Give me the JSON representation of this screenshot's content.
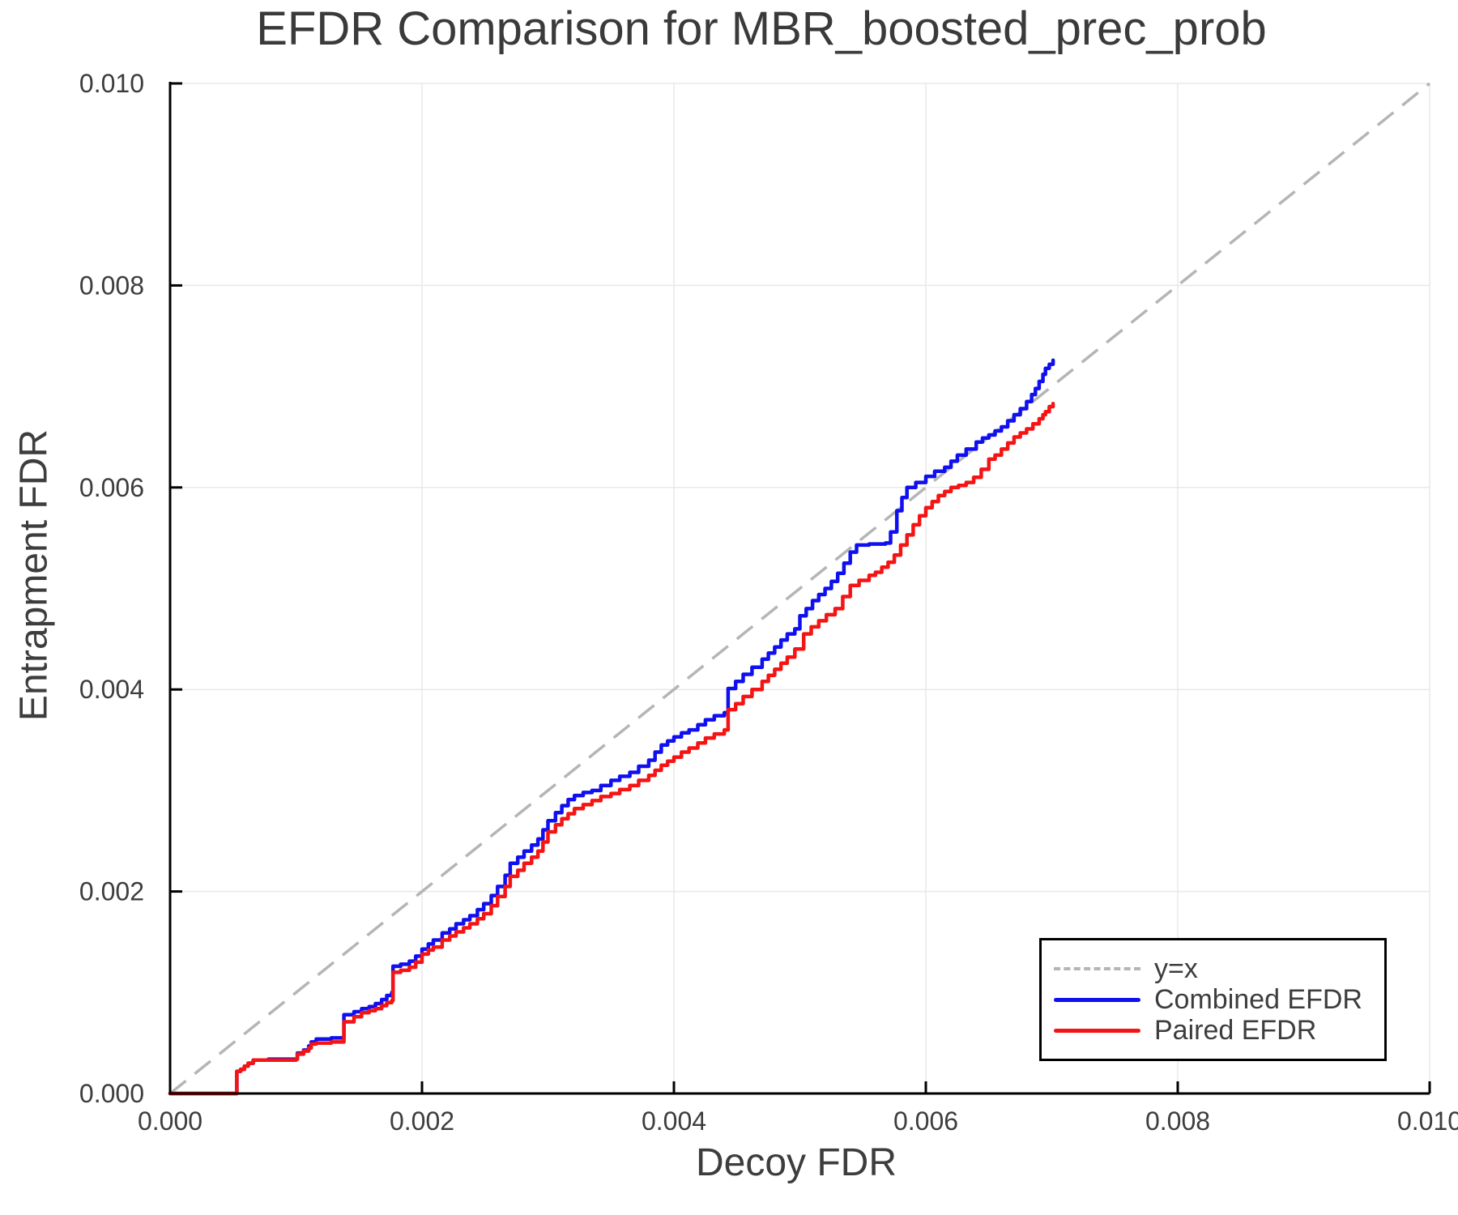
{
  "page": {
    "background": "#ffffff"
  },
  "chart_data": {
    "type": "line",
    "title": "EFDR Comparison for MBR_boosted_prec_prob",
    "xlabel": "Decoy FDR",
    "ylabel": "Entrapment FDR",
    "xlim": [
      0.0,
      0.01
    ],
    "ylim": [
      0.0,
      0.01
    ],
    "grid": true,
    "x_ticks": {
      "values": [
        0.0,
        0.002,
        0.004,
        0.006,
        0.008,
        0.01
      ],
      "labels": [
        "0.000",
        "0.002",
        "0.004",
        "0.006",
        "0.008",
        "0.010"
      ]
    },
    "y_ticks": {
      "values": [
        0.0,
        0.002,
        0.004,
        0.006,
        0.008,
        0.01
      ],
      "labels": [
        "0.000",
        "0.002",
        "0.004",
        "0.006",
        "0.008",
        "0.010"
      ]
    },
    "colors": {
      "grid": "#e8e8e8",
      "spine": "#000000",
      "tick_text": "#3d3d3d",
      "reference": "#b5b5b5",
      "combined": "#0f0ff0",
      "paired": "#f51414"
    },
    "reference_line": {
      "label": "y=x",
      "style": "dashed",
      "from": [
        0.0,
        0.0
      ],
      "to": [
        0.01,
        0.01
      ]
    },
    "legend": {
      "position": "lower-right",
      "items": [
        {
          "label": "y=x",
          "color": "#b5b5b5",
          "dash": true
        },
        {
          "label": "Combined EFDR",
          "color": "#0f0ff0",
          "dash": false
        },
        {
          "label": "Paired EFDR",
          "color": "#f51414",
          "dash": false
        }
      ]
    },
    "series": [
      {
        "name": "Combined EFDR",
        "color": "#0f0ff0",
        "step": true,
        "points": [
          [
            0.0,
            0.0
          ],
          [
            0.00053,
            0.0
          ],
          [
            0.00053,
            0.00022
          ],
          [
            0.00056,
            0.00024
          ],
          [
            0.00059,
            0.00027
          ],
          [
            0.00062,
            0.0003
          ],
          [
            0.00066,
            0.00033
          ],
          [
            0.00078,
            0.00034
          ],
          [
            0.001,
            0.00034
          ],
          [
            0.00101,
            0.0004
          ],
          [
            0.00106,
            0.00043
          ],
          [
            0.0011,
            0.00047
          ],
          [
            0.00112,
            0.00051
          ],
          [
            0.00116,
            0.00054
          ],
          [
            0.00128,
            0.00055
          ],
          [
            0.00137,
            0.00055
          ],
          [
            0.00138,
            0.00078
          ],
          [
            0.00146,
            0.00081
          ],
          [
            0.00152,
            0.00084
          ],
          [
            0.00158,
            0.00086
          ],
          [
            0.00163,
            0.00089
          ],
          [
            0.00168,
            0.00093
          ],
          [
            0.00172,
            0.00097
          ],
          [
            0.00176,
            0.001
          ],
          [
            0.00177,
            0.00126
          ],
          [
            0.00183,
            0.00128
          ],
          [
            0.0019,
            0.00131
          ],
          [
            0.00195,
            0.00136
          ],
          [
            0.002,
            0.00143
          ],
          [
            0.00205,
            0.00148
          ],
          [
            0.00209,
            0.00152
          ],
          [
            0.00216,
            0.00159
          ],
          [
            0.00222,
            0.00163
          ],
          [
            0.00227,
            0.00168
          ],
          [
            0.00233,
            0.00172
          ],
          [
            0.00238,
            0.00176
          ],
          [
            0.00244,
            0.00182
          ],
          [
            0.00249,
            0.00188
          ],
          [
            0.00255,
            0.00196
          ],
          [
            0.0026,
            0.00205
          ],
          [
            0.00266,
            0.00216
          ],
          [
            0.0027,
            0.00228
          ],
          [
            0.00276,
            0.00234
          ],
          [
            0.00281,
            0.0024
          ],
          [
            0.00287,
            0.00246
          ],
          [
            0.00292,
            0.00252
          ],
          [
            0.00296,
            0.00261
          ],
          [
            0.003,
            0.0027
          ],
          [
            0.00306,
            0.00278
          ],
          [
            0.00311,
            0.00285
          ],
          [
            0.00316,
            0.00291
          ],
          [
            0.00321,
            0.00295
          ],
          [
            0.00328,
            0.00298
          ],
          [
            0.00335,
            0.003
          ],
          [
            0.00342,
            0.00305
          ],
          [
            0.0035,
            0.0031
          ],
          [
            0.00357,
            0.00314
          ],
          [
            0.00365,
            0.00318
          ],
          [
            0.00372,
            0.00324
          ],
          [
            0.0038,
            0.0033
          ],
          [
            0.00385,
            0.00338
          ],
          [
            0.0039,
            0.00345
          ],
          [
            0.00395,
            0.00349
          ],
          [
            0.004,
            0.00353
          ],
          [
            0.00406,
            0.00357
          ],
          [
            0.00412,
            0.0036
          ],
          [
            0.00419,
            0.00365
          ],
          [
            0.00425,
            0.0037
          ],
          [
            0.00432,
            0.00374
          ],
          [
            0.0044,
            0.00377
          ],
          [
            0.00443,
            0.00401
          ],
          [
            0.00449,
            0.00408
          ],
          [
            0.00455,
            0.00415
          ],
          [
            0.00462,
            0.00422
          ],
          [
            0.0047,
            0.0043
          ],
          [
            0.00475,
            0.00436
          ],
          [
            0.0048,
            0.00442
          ],
          [
            0.00485,
            0.00449
          ],
          [
            0.0049,
            0.00455
          ],
          [
            0.00496,
            0.0046
          ],
          [
            0.005,
            0.00473
          ],
          [
            0.00505,
            0.0048
          ],
          [
            0.0051,
            0.00488
          ],
          [
            0.00515,
            0.00494
          ],
          [
            0.0052,
            0.005
          ],
          [
            0.00525,
            0.00507
          ],
          [
            0.0053,
            0.00515
          ],
          [
            0.00535,
            0.00525
          ],
          [
            0.0054,
            0.00536
          ],
          [
            0.00545,
            0.00543
          ],
          [
            0.00555,
            0.00544
          ],
          [
            0.00568,
            0.00545
          ],
          [
            0.00572,
            0.00556
          ],
          [
            0.00577,
            0.00577
          ],
          [
            0.00581,
            0.0059
          ],
          [
            0.00585,
            0.006
          ],
          [
            0.00592,
            0.00605
          ],
          [
            0.006,
            0.00611
          ],
          [
            0.00607,
            0.00616
          ],
          [
            0.00615,
            0.0062
          ],
          [
            0.0062,
            0.00626
          ],
          [
            0.00625,
            0.00632
          ],
          [
            0.00632,
            0.00638
          ],
          [
            0.0064,
            0.00645
          ],
          [
            0.00645,
            0.00649
          ],
          [
            0.0065,
            0.00652
          ],
          [
            0.00655,
            0.00656
          ],
          [
            0.0066,
            0.0066
          ],
          [
            0.00665,
            0.00666
          ],
          [
            0.0067,
            0.00672
          ],
          [
            0.00675,
            0.00678
          ],
          [
            0.0068,
            0.00685
          ],
          [
            0.00684,
            0.00692
          ],
          [
            0.00687,
            0.00698
          ],
          [
            0.0069,
            0.00705
          ],
          [
            0.00693,
            0.00712
          ],
          [
            0.00695,
            0.00718
          ],
          [
            0.00698,
            0.00722
          ],
          [
            0.00701,
            0.00726
          ]
        ]
      },
      {
        "name": "Paired EFDR",
        "color": "#f51414",
        "step": true,
        "points": [
          [
            0.0,
            0.0
          ],
          [
            0.00053,
            0.0
          ],
          [
            0.00053,
            0.00022
          ],
          [
            0.00056,
            0.00024
          ],
          [
            0.00059,
            0.00027
          ],
          [
            0.00062,
            0.0003
          ],
          [
            0.00066,
            0.00033
          ],
          [
            0.00078,
            0.00033
          ],
          [
            0.001,
            0.00034
          ],
          [
            0.00101,
            0.00039
          ],
          [
            0.00106,
            0.00042
          ],
          [
            0.0011,
            0.00045
          ],
          [
            0.00112,
            0.00049
          ],
          [
            0.00116,
            0.0005
          ],
          [
            0.00128,
            0.00051
          ],
          [
            0.00137,
            0.00051
          ],
          [
            0.00138,
            0.00071
          ],
          [
            0.00146,
            0.00076
          ],
          [
            0.00152,
            0.0008
          ],
          [
            0.00158,
            0.00082
          ],
          [
            0.00163,
            0.00084
          ],
          [
            0.00168,
            0.00087
          ],
          [
            0.00172,
            0.0009
          ],
          [
            0.00176,
            0.00092
          ],
          [
            0.00177,
            0.0012
          ],
          [
            0.00183,
            0.00122
          ],
          [
            0.0019,
            0.00125
          ],
          [
            0.00195,
            0.0013
          ],
          [
            0.002,
            0.00138
          ],
          [
            0.00205,
            0.00142
          ],
          [
            0.00209,
            0.00145
          ],
          [
            0.00216,
            0.00152
          ],
          [
            0.00222,
            0.00156
          ],
          [
            0.00227,
            0.0016
          ],
          [
            0.00233,
            0.00164
          ],
          [
            0.00238,
            0.00168
          ],
          [
            0.00244,
            0.00173
          ],
          [
            0.00249,
            0.00178
          ],
          [
            0.00255,
            0.00186
          ],
          [
            0.0026,
            0.00195
          ],
          [
            0.00266,
            0.00205
          ],
          [
            0.0027,
            0.00215
          ],
          [
            0.00276,
            0.00221
          ],
          [
            0.00281,
            0.00228
          ],
          [
            0.00287,
            0.00234
          ],
          [
            0.00292,
            0.0024
          ],
          [
            0.00296,
            0.00249
          ],
          [
            0.003,
            0.00259
          ],
          [
            0.00306,
            0.00266
          ],
          [
            0.00311,
            0.00272
          ],
          [
            0.00316,
            0.00277
          ],
          [
            0.00321,
            0.00282
          ],
          [
            0.00328,
            0.00286
          ],
          [
            0.00335,
            0.0029
          ],
          [
            0.00342,
            0.00294
          ],
          [
            0.0035,
            0.00297
          ],
          [
            0.00357,
            0.00301
          ],
          [
            0.00365,
            0.00305
          ],
          [
            0.00372,
            0.0031
          ],
          [
            0.0038,
            0.00315
          ],
          [
            0.00385,
            0.0032
          ],
          [
            0.0039,
            0.00325
          ],
          [
            0.00395,
            0.00329
          ],
          [
            0.004,
            0.00333
          ],
          [
            0.00406,
            0.00338
          ],
          [
            0.00412,
            0.00342
          ],
          [
            0.00419,
            0.00347
          ],
          [
            0.00425,
            0.00352
          ],
          [
            0.00432,
            0.00356
          ],
          [
            0.0044,
            0.0036
          ],
          [
            0.00443,
            0.0038
          ],
          [
            0.00449,
            0.00386
          ],
          [
            0.00455,
            0.00393
          ],
          [
            0.00462,
            0.004
          ],
          [
            0.0047,
            0.00408
          ],
          [
            0.00475,
            0.00414
          ],
          [
            0.0048,
            0.0042
          ],
          [
            0.00485,
            0.00426
          ],
          [
            0.0049,
            0.00432
          ],
          [
            0.00496,
            0.0044
          ],
          [
            0.00503,
            0.00455
          ],
          [
            0.00509,
            0.00462
          ],
          [
            0.00515,
            0.00468
          ],
          [
            0.00521,
            0.00474
          ],
          [
            0.00528,
            0.0048
          ],
          [
            0.00534,
            0.00492
          ],
          [
            0.0054,
            0.00503
          ],
          [
            0.00547,
            0.00508
          ],
          [
            0.00555,
            0.00513
          ],
          [
            0.0056,
            0.00516
          ],
          [
            0.00565,
            0.00521
          ],
          [
            0.0057,
            0.00526
          ],
          [
            0.00575,
            0.00533
          ],
          [
            0.0058,
            0.00543
          ],
          [
            0.00585,
            0.00553
          ],
          [
            0.0059,
            0.00563
          ],
          [
            0.00595,
            0.00572
          ],
          [
            0.006,
            0.0058
          ],
          [
            0.00605,
            0.00586
          ],
          [
            0.0061,
            0.00592
          ],
          [
            0.00615,
            0.00596
          ],
          [
            0.0062,
            0.006
          ],
          [
            0.00626,
            0.00602
          ],
          [
            0.00632,
            0.00605
          ],
          [
            0.00638,
            0.0061
          ],
          [
            0.00644,
            0.00618
          ],
          [
            0.0065,
            0.00628
          ],
          [
            0.00655,
            0.00632
          ],
          [
            0.0066,
            0.00638
          ],
          [
            0.00665,
            0.00644
          ],
          [
            0.0067,
            0.0065
          ],
          [
            0.00675,
            0.00654
          ],
          [
            0.0068,
            0.00658
          ],
          [
            0.00685,
            0.00663
          ],
          [
            0.0069,
            0.00668
          ],
          [
            0.00693,
            0.00672
          ],
          [
            0.00695,
            0.00675
          ],
          [
            0.00698,
            0.0068
          ],
          [
            0.00701,
            0.00683
          ]
        ]
      }
    ]
  }
}
